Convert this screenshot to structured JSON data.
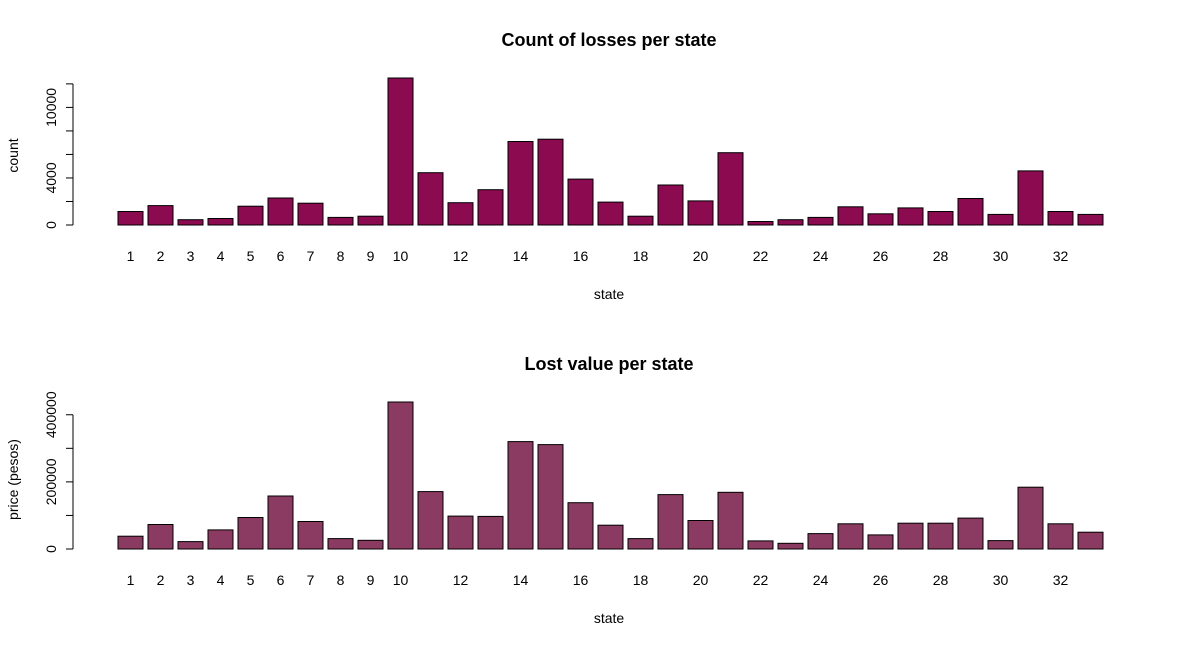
{
  "chart_data": [
    {
      "type": "bar",
      "title": "Count of losses per state",
      "xlabel": "state",
      "ylabel": "count",
      "ylim": [
        0,
        12600
      ],
      "yticks": [
        0,
        4000,
        10000
      ],
      "yticks_unlabeled": [
        2000,
        6000,
        8000,
        12000
      ],
      "categories": [
        "1",
        "2",
        "3",
        "4",
        "5",
        "6",
        "7",
        "8",
        "9",
        "10",
        "11",
        "12",
        "13",
        "14",
        "15",
        "16",
        "17",
        "18",
        "19",
        "20",
        "21",
        "22",
        "23",
        "24",
        "25",
        "26",
        "27",
        "28",
        "29",
        "30",
        "31",
        "32",
        "33"
      ],
      "shown_tick_labels": [
        "1",
        "2",
        "3",
        "4",
        "5",
        "6",
        "7",
        "8",
        "9",
        "10",
        "12",
        "14",
        "16",
        "18",
        "20",
        "22",
        "24",
        "26",
        "28",
        "30",
        "32"
      ],
      "values": [
        1150,
        1650,
        450,
        550,
        1600,
        2300,
        1850,
        650,
        750,
        12500,
        4450,
        1900,
        3000,
        7100,
        7300,
        3900,
        1950,
        750,
        3400,
        2050,
        6150,
        300,
        450,
        650,
        1550,
        950,
        1450,
        1150,
        2250,
        900,
        4600,
        1150,
        900
      ],
      "color": "#8B0A50",
      "grid": false
    },
    {
      "type": "bar",
      "title": "Lost value per state",
      "xlabel": "state",
      "ylabel": "price (pesos)",
      "ylim": [
        0,
        440000
      ],
      "yticks": [
        0,
        200000,
        400000
      ],
      "yticks_unlabeled": [
        100000,
        300000
      ],
      "categories": [
        "1",
        "2",
        "3",
        "4",
        "5",
        "6",
        "7",
        "8",
        "9",
        "10",
        "11",
        "12",
        "13",
        "14",
        "15",
        "16",
        "17",
        "18",
        "19",
        "20",
        "21",
        "22",
        "23",
        "24",
        "25",
        "26",
        "27",
        "28",
        "29",
        "30",
        "31",
        "32",
        "33"
      ],
      "shown_tick_labels": [
        "1",
        "2",
        "3",
        "4",
        "5",
        "6",
        "7",
        "8",
        "9",
        "10",
        "12",
        "14",
        "16",
        "18",
        "20",
        "22",
        "24",
        "26",
        "28",
        "30",
        "32"
      ],
      "values": [
        38000,
        73000,
        22000,
        57000,
        94000,
        158000,
        82000,
        31000,
        26000,
        438000,
        171000,
        98000,
        97000,
        320000,
        311000,
        138000,
        71000,
        31000,
        162000,
        85000,
        169000,
        24000,
        17000,
        46000,
        75000,
        42000,
        77000,
        77000,
        92000,
        25000,
        184000,
        75000,
        50000
      ],
      "color": "#8B3A62",
      "grid": false
    }
  ]
}
